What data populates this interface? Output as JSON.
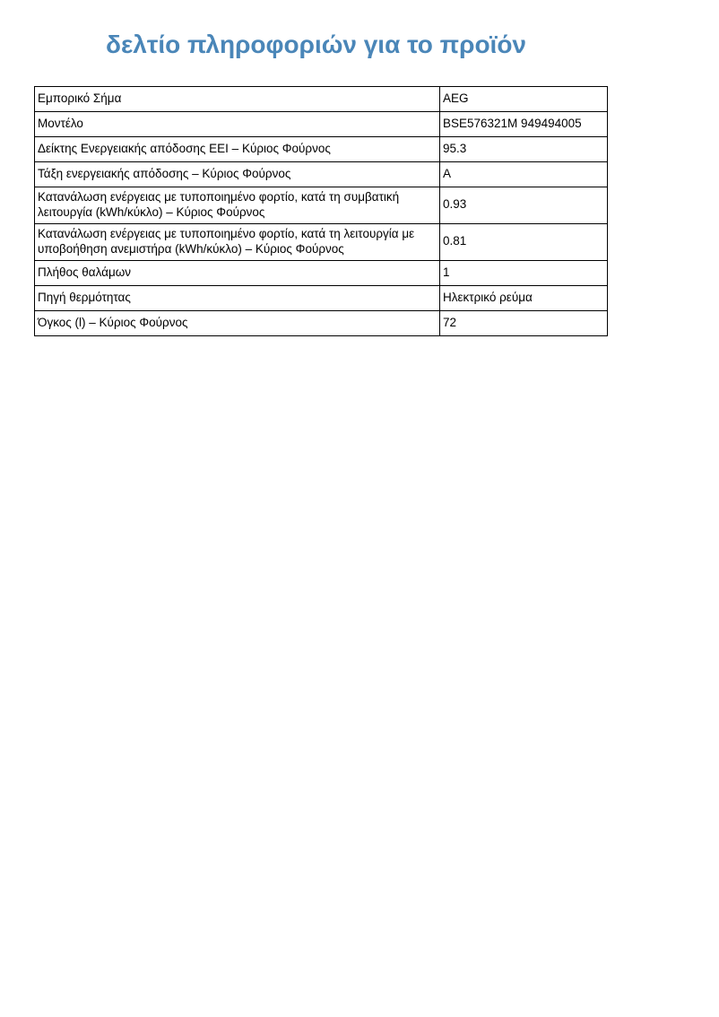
{
  "page": {
    "title": "δελτίο πληροφοριών για το προϊόν",
    "title_color": "#4a86b8"
  },
  "table": {
    "rows": [
      {
        "label": "Εμπορικό Σήμα",
        "value": "AEG"
      },
      {
        "label": "Μοντέλο",
        "value": "BSE576321M 949494005"
      },
      {
        "label": "Δείκτης Ενεργειακής απόδοσης EEI – Κύριος Φούρνος",
        "value": "95.3"
      },
      {
        "label": "Τάξη ενεργειακής απόδοσης – Κύριος Φούρνος",
        "value": "A"
      },
      {
        "label": "Κατανάλωση ενέργειας με τυποποιημένο φορτίο, κατά τη συμβατική λειτουργία (kWh/κύκλο) – Κύριος Φούρνος",
        "value": "0.93"
      },
      {
        "label": "Κατανάλωση ενέργειας με τυποποιημένο φορτίο, κατά τη λειτουργία με υποβοήθηση ανεμιστήρα (kWh/κύκλο) – Κύριος Φούρνος",
        "value": "0.81"
      },
      {
        "label": "Πλήθος θαλάμων",
        "value": "1"
      },
      {
        "label": "Πηγή θερμότητας",
        "value": "Ηλεκτρικό ρεύμα"
      },
      {
        "label": "Όγκος (l) – Κύριος Φούρνος",
        "value": "72"
      }
    ]
  }
}
